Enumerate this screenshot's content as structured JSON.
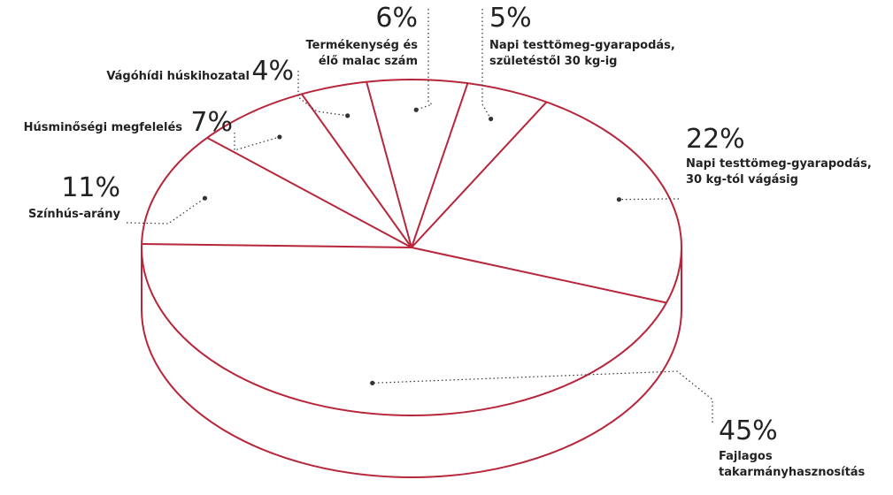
{
  "colors": {
    "outline": "#b8263b",
    "text": "#222222",
    "leader": "#333333"
  },
  "chart_data": {
    "type": "pie",
    "title": "",
    "style": "3d-outline",
    "slices": [
      {
        "label": [
          "Napi testtömeg-gyarapodás,",
          "30 kg-tól vágásig"
        ],
        "value": 22,
        "value_label": "22%"
      },
      {
        "label": [
          "Fajlagos",
          "takarmányhasznosítás"
        ],
        "value": 45,
        "value_label": "45%"
      },
      {
        "label": [
          "Színhús-arány"
        ],
        "value": 11,
        "value_label": "11%"
      },
      {
        "label": [
          "Húsminőségi megfelelés"
        ],
        "value": 7,
        "value_label": "7%"
      },
      {
        "label": [
          "Vágóhídi húskihozatal"
        ],
        "value": 4,
        "value_label": "4%"
      },
      {
        "label": [
          "Termékenység és",
          "élő malac szám"
        ],
        "value": 6,
        "value_label": "6%"
      },
      {
        "label": [
          "Napi testtömeg-gyarapodás,",
          "születéstől 30 kg-ig"
        ],
        "value": 5,
        "value_label": "5%"
      }
    ]
  }
}
